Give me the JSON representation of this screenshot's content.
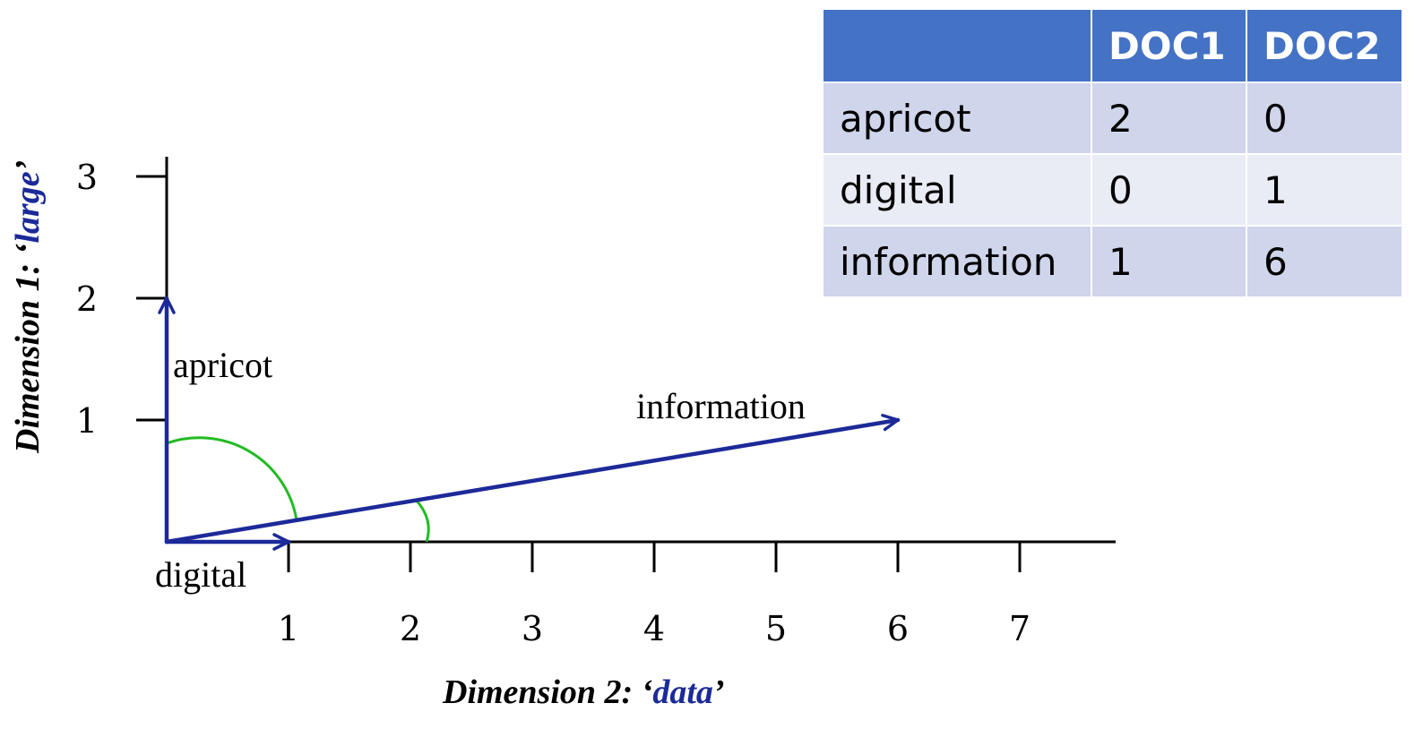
{
  "axes": {
    "x_title": {
      "prefix": "Dimension 2: ‘",
      "highlight": "data",
      "suffix": "’"
    },
    "y_title": {
      "prefix": "Dimension 1: ‘",
      "highlight": "large",
      "suffix": "’"
    },
    "x_ticks": [
      "1",
      "2",
      "3",
      "4",
      "5",
      "6",
      "7"
    ],
    "y_ticks": [
      "1",
      "2",
      "3"
    ]
  },
  "vectors": [
    {
      "label": "apricot",
      "x": 0,
      "y": 2
    },
    {
      "label": "digital",
      "x": 1,
      "y": 0
    },
    {
      "label": "information",
      "x": 6,
      "y": 1
    }
  ],
  "colors": {
    "vector": "#1c2a99",
    "angle_arc": "#22bb22",
    "header": "#4472c4",
    "row_odd": "#cfd5ea",
    "row_even": "#e9ebf5"
  },
  "table": {
    "headers": [
      "",
      "DOC1",
      "DOC2"
    ],
    "rows": [
      [
        "apricot",
        "2",
        "0"
      ],
      [
        "digital",
        "0",
        "1"
      ],
      [
        "information",
        "1",
        "6"
      ]
    ]
  }
}
